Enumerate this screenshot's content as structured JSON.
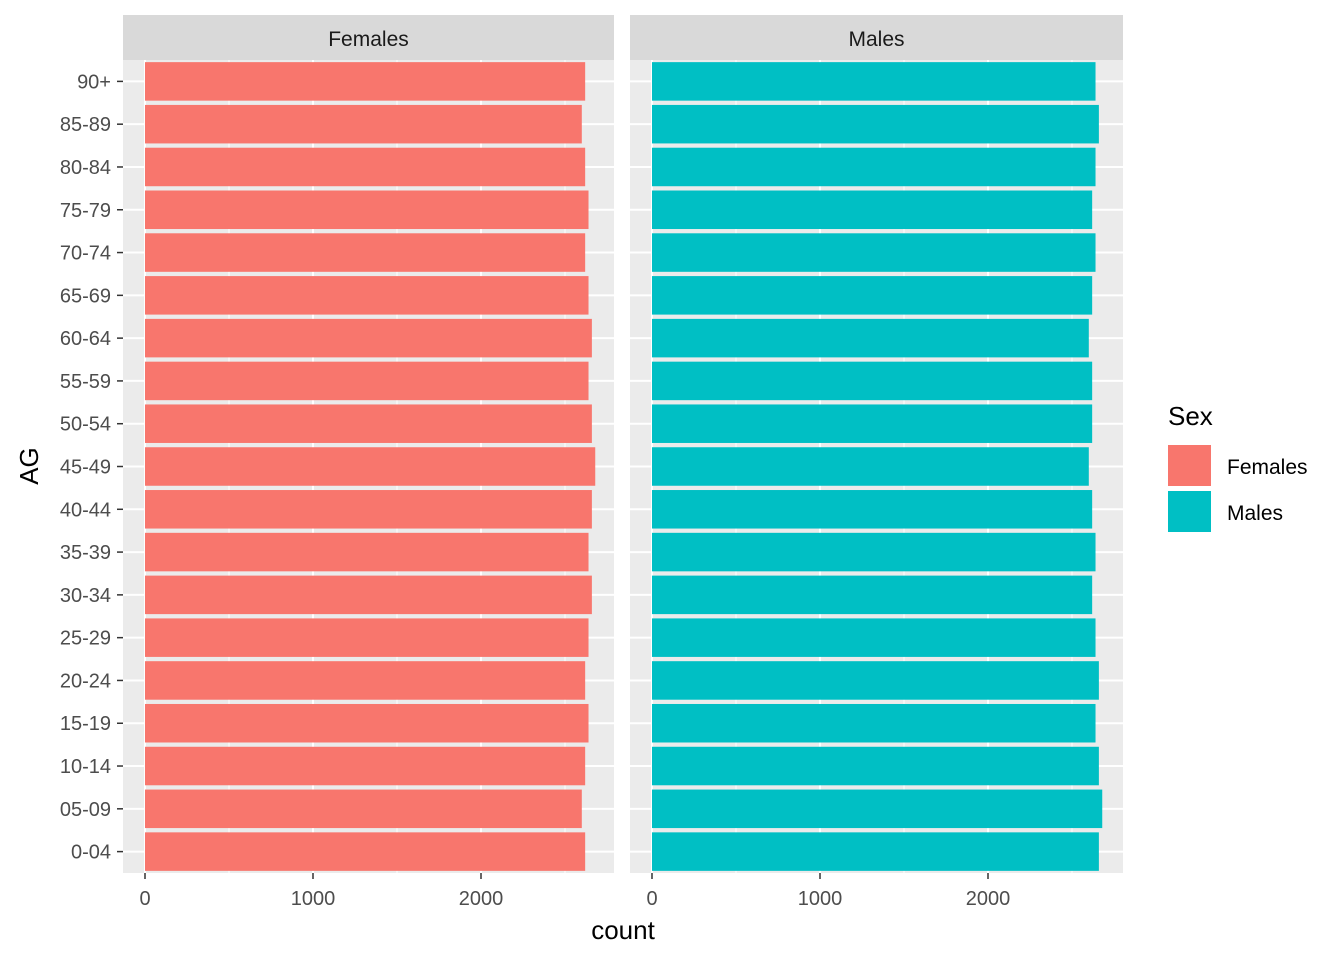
{
  "chart_data": {
    "type": "bar",
    "orientation": "horizontal",
    "faceted": true,
    "xlabel": "count",
    "ylabel": "AG",
    "xlim": [
      0,
      2900
    ],
    "x_ticks": [
      0,
      1000,
      2000
    ],
    "x_tick_labels": [
      "0",
      "1000",
      "2000"
    ],
    "grid": true,
    "categories": [
      "0-04",
      "05-09",
      "10-14",
      "15-19",
      "20-24",
      "25-29",
      "30-34",
      "35-39",
      "40-44",
      "45-49",
      "50-54",
      "55-59",
      "60-64",
      "65-69",
      "70-74",
      "75-79",
      "80-84",
      "85-89",
      "90+"
    ],
    "series": [
      {
        "name": "Females",
        "color": "#F8766D",
        "values": [
          2620,
          2600,
          2620,
          2640,
          2620,
          2640,
          2660,
          2640,
          2660,
          2680,
          2660,
          2640,
          2660,
          2640,
          2620,
          2640,
          2620,
          2600,
          2620
        ]
      },
      {
        "name": "Males",
        "color": "#00BFC4",
        "values": [
          2660,
          2680,
          2660,
          2640,
          2660,
          2640,
          2620,
          2640,
          2620,
          2600,
          2620,
          2620,
          2600,
          2620,
          2640,
          2620,
          2640,
          2660,
          2640
        ]
      }
    ],
    "legend": {
      "title": "Sex",
      "position": "right",
      "entries": [
        "Females",
        "Males"
      ]
    }
  }
}
